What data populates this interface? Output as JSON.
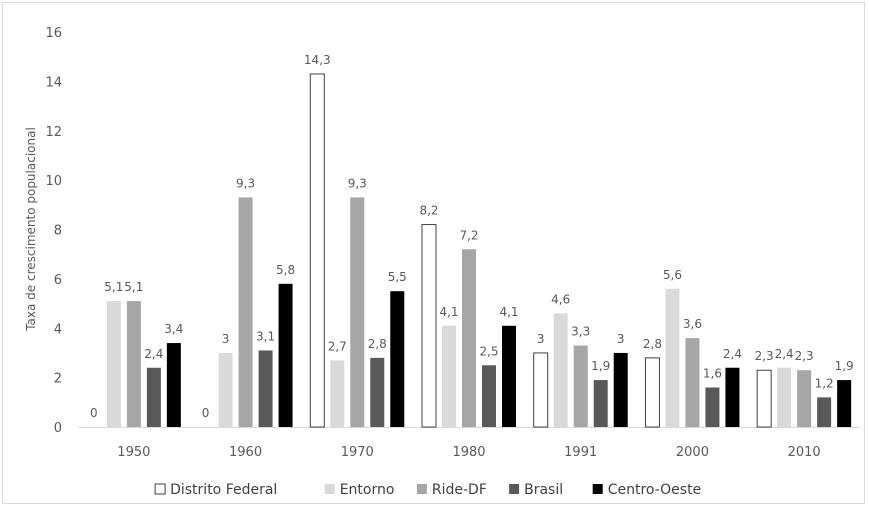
{
  "chart_data": {
    "type": "bar",
    "title": "",
    "xlabel": "",
    "ylabel": "Taxa de crescimento populacional",
    "ylim": [
      0,
      16
    ],
    "yticks": [
      "0",
      "2",
      "4",
      "6",
      "8",
      "10",
      "12",
      "14",
      "16"
    ],
    "grid": false,
    "legend_position": "bottom",
    "categories": [
      "1950",
      "1960",
      "1970",
      "1980",
      "1991",
      "2000",
      "2010"
    ],
    "series": [
      {
        "name": "Distrito Federal",
        "color": "#ffffff",
        "stroke": "#404040",
        "values": [
          0,
          0,
          14.3,
          8.2,
          3,
          2.8,
          2.3
        ],
        "labels": [
          "0",
          "0",
          "14,3",
          "8,2",
          "3",
          "2,8",
          "2,3"
        ]
      },
      {
        "name": "Entorno",
        "color": "#d9d9d9",
        "stroke": "none",
        "values": [
          5.1,
          3,
          2.7,
          4.1,
          4.6,
          5.6,
          2.4
        ],
        "labels": [
          "5,1",
          "3",
          "2,7",
          "4,1",
          "4,6",
          "5,6",
          "2,4"
        ]
      },
      {
        "name": "Ride-DF",
        "color": "#a6a6a6",
        "stroke": "none",
        "values": [
          5.1,
          9.3,
          9.3,
          7.2,
          3.3,
          3.6,
          2.3
        ],
        "labels": [
          "5,1",
          "9,3",
          "9,3",
          "7,2",
          "3,3",
          "3,6",
          "2,3"
        ]
      },
      {
        "name": "Brasil",
        "color": "#595959",
        "stroke": "none",
        "values": [
          2.4,
          3.1,
          2.8,
          2.5,
          1.9,
          1.6,
          1.2
        ],
        "labels": [
          "2,4",
          "3,1",
          "2,8",
          "2,5",
          "1,9",
          "1,6",
          "1,2"
        ]
      },
      {
        "name": "Centro-Oeste",
        "color": "#000000",
        "stroke": "none",
        "values": [
          3.4,
          5.8,
          5.5,
          4.1,
          3,
          2.4,
          1.9
        ],
        "labels": [
          "3,4",
          "5,8",
          "5,5",
          "4,1",
          "3",
          "2,4",
          "1,9"
        ]
      }
    ]
  }
}
